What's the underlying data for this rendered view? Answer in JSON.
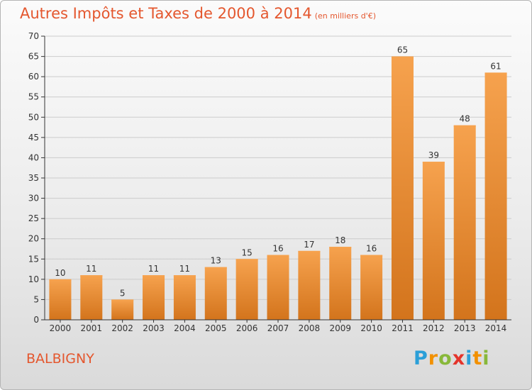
{
  "title": "Autres Impôts et Taxes de 2000 à 2014",
  "subtitle": "(en milliers d'€)",
  "commune": "BALBIGNY",
  "logo": {
    "letters": [
      "P",
      "r",
      "o",
      "x",
      "i",
      "t",
      "i"
    ],
    "colors": [
      "#2b9fd8",
      "#f29100",
      "#88b83a",
      "#e4342b",
      "#2b9fd8",
      "#f29100",
      "#88b83a"
    ]
  },
  "colors": {
    "title": "#e4572e",
    "bar_light": "#f6a24e",
    "bar_dark": "#d3741c",
    "axis": "#333333",
    "grid": "#cccccc"
  },
  "chart_data": {
    "type": "bar",
    "title": "Autres Impôts et Taxes de 2000 à 2014",
    "xlabel": "",
    "ylabel": "",
    "ylim": [
      0,
      70
    ],
    "yticks": [
      0,
      5,
      10,
      15,
      20,
      25,
      30,
      35,
      40,
      45,
      50,
      55,
      60,
      65,
      70
    ],
    "grid": true,
    "categories": [
      "2000",
      "2001",
      "2002",
      "2003",
      "2004",
      "2005",
      "2006",
      "2007",
      "2008",
      "2009",
      "2010",
      "2011",
      "2012",
      "2013",
      "2014"
    ],
    "values": [
      10,
      11,
      5,
      11,
      11,
      13,
      15,
      16,
      17,
      18,
      16,
      65,
      39,
      48,
      61
    ]
  }
}
